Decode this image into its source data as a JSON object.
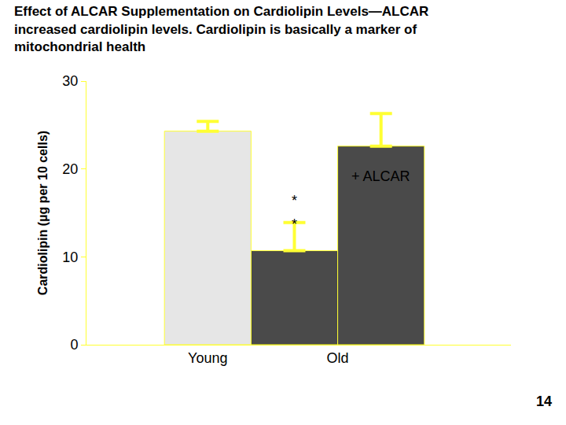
{
  "chart_data": {
    "type": "bar",
    "title": "Effect of ALCAR Supplementation on Cardiolipin Levels—ALCAR\nincreased cardiolipin levels. Cardiolipin is basically a marker of\nmitochondrial health",
    "y_label": "Cardiolipin (µg per 10 cells)",
    "categories": [
      "Young",
      "Old",
      null
    ],
    "values": [
      24.3,
      10.7,
      22.6
    ],
    "errors": [
      1.1,
      3.2,
      3.7
    ],
    "colors": [
      "#e6e6e6",
      "#4a4a4a",
      "#4a4a4a"
    ],
    "ylim": [
      0,
      30
    ],
    "yticks": [
      0,
      10,
      20,
      30
    ],
    "grid": false,
    "annotations": [
      {
        "text": "+ ALCAR",
        "x": 2,
        "y": 19.2
      },
      {
        "text": "*",
        "x": 1,
        "y": 16.4
      },
      {
        "text": "*",
        "x": 1,
        "y": 13.7
      }
    ]
  },
  "page_number": "14"
}
